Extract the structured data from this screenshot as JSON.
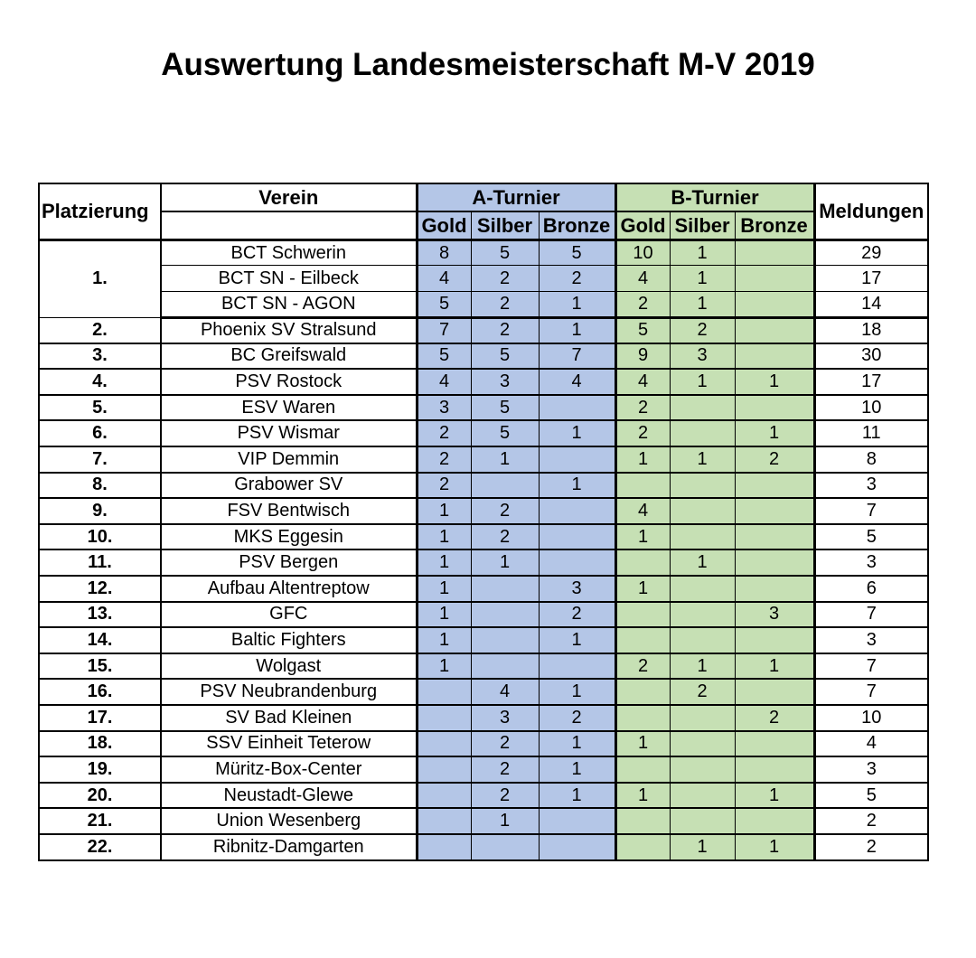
{
  "title": "Auswertung Landesmeisterschaft M-V 2019",
  "table": {
    "headers": {
      "platzierung": "Platzierung",
      "verein": "Verein",
      "a_turnier": "A-Turnier",
      "b_turnier": "B-Turnier",
      "gold": "Gold",
      "silber": "Silber",
      "bronze": "Bronze",
      "meldungen": "Meldungen"
    },
    "colors": {
      "a_fill": "#B4C6E7",
      "b_fill": "#C6E0B4",
      "border": "#000000"
    },
    "groups": [
      {
        "rank": "1.",
        "highlight": true,
        "rows": [
          {
            "verein": "BCT Schwerin",
            "a": [
              "8",
              "5",
              "5"
            ],
            "b": [
              "10",
              "1",
              ""
            ],
            "meldungen": "29"
          },
          {
            "verein": "BCT SN - Eilbeck",
            "a": [
              "4",
              "2",
              "2"
            ],
            "b": [
              "4",
              "1",
              ""
            ],
            "meldungen": "17"
          },
          {
            "verein": "BCT SN - AGON",
            "a": [
              "5",
              "2",
              "1"
            ],
            "b": [
              "2",
              "1",
              ""
            ],
            "meldungen": "14"
          }
        ]
      },
      {
        "rank": "2.",
        "highlight": false,
        "rows": [
          {
            "verein": "Phoenix SV Stralsund",
            "a": [
              "7",
              "2",
              "1"
            ],
            "b": [
              "5",
              "2",
              ""
            ],
            "meldungen": "18"
          }
        ]
      },
      {
        "rank": "3.",
        "highlight": false,
        "rows": [
          {
            "verein": "BC Greifswald",
            "a": [
              "5",
              "5",
              "7"
            ],
            "b": [
              "9",
              "3",
              ""
            ],
            "meldungen": "30"
          }
        ]
      },
      {
        "rank": "4.",
        "highlight": false,
        "rows": [
          {
            "verein": "PSV Rostock",
            "a": [
              "4",
              "3",
              "4"
            ],
            "b": [
              "4",
              "1",
              "1"
            ],
            "meldungen": "17"
          }
        ]
      },
      {
        "rank": "5.",
        "highlight": false,
        "rows": [
          {
            "verein": "ESV Waren",
            "a": [
              "3",
              "5",
              ""
            ],
            "b": [
              "2",
              "",
              ""
            ],
            "meldungen": "10"
          }
        ]
      },
      {
        "rank": "6.",
        "highlight": false,
        "rows": [
          {
            "verein": "PSV Wismar",
            "a": [
              "2",
              "5",
              "1"
            ],
            "b": [
              "2",
              "",
              "1"
            ],
            "meldungen": "11"
          }
        ]
      },
      {
        "rank": "7.",
        "highlight": false,
        "rows": [
          {
            "verein": "VIP Demmin",
            "a": [
              "2",
              "1",
              ""
            ],
            "b": [
              "1",
              "1",
              "2"
            ],
            "meldungen": "8"
          }
        ]
      },
      {
        "rank": "8.",
        "highlight": false,
        "rows": [
          {
            "verein": "Grabower SV",
            "a": [
              "2",
              "",
              "1"
            ],
            "b": [
              "",
              "",
              ""
            ],
            "meldungen": "3"
          }
        ]
      },
      {
        "rank": "9.",
        "highlight": false,
        "rows": [
          {
            "verein": "FSV Bentwisch",
            "a": [
              "1",
              "2",
              ""
            ],
            "b": [
              "4",
              "",
              ""
            ],
            "meldungen": "7"
          }
        ]
      },
      {
        "rank": "10.",
        "highlight": false,
        "rows": [
          {
            "verein": "MKS Eggesin",
            "a": [
              "1",
              "2",
              ""
            ],
            "b": [
              "1",
              "",
              ""
            ],
            "meldungen": "5"
          }
        ]
      },
      {
        "rank": "11.",
        "highlight": false,
        "rows": [
          {
            "verein": "PSV Bergen",
            "a": [
              "1",
              "1",
              ""
            ],
            "b": [
              "",
              "1",
              ""
            ],
            "meldungen": "3"
          }
        ]
      },
      {
        "rank": "12.",
        "highlight": false,
        "rows": [
          {
            "verein": "Aufbau Altentreptow",
            "a": [
              "1",
              "",
              "3"
            ],
            "b": [
              "1",
              "",
              ""
            ],
            "meldungen": "6"
          }
        ]
      },
      {
        "rank": "13.",
        "highlight": false,
        "rows": [
          {
            "verein": "GFC",
            "a": [
              "1",
              "",
              "2"
            ],
            "b": [
              "",
              "",
              "3"
            ],
            "meldungen": "7"
          }
        ]
      },
      {
        "rank": "14.",
        "highlight": false,
        "rows": [
          {
            "verein": "Baltic Fighters",
            "a": [
              "1",
              "",
              "1"
            ],
            "b": [
              "",
              "",
              ""
            ],
            "meldungen": "3"
          }
        ]
      },
      {
        "rank": "15.",
        "highlight": false,
        "rows": [
          {
            "verein": "Wolgast",
            "a": [
              "1",
              "",
              ""
            ],
            "b": [
              "2",
              "1",
              "1"
            ],
            "meldungen": "7"
          }
        ]
      },
      {
        "rank": "16.",
        "highlight": false,
        "rows": [
          {
            "verein": "PSV Neubrandenburg",
            "a": [
              "",
              "4",
              "1"
            ],
            "b": [
              "",
              "2",
              ""
            ],
            "meldungen": "7"
          }
        ]
      },
      {
        "rank": "17.",
        "highlight": false,
        "rows": [
          {
            "verein": "SV Bad Kleinen",
            "a": [
              "",
              "3",
              "2"
            ],
            "b": [
              "",
              "",
              "2"
            ],
            "meldungen": "10"
          }
        ]
      },
      {
        "rank": "18.",
        "highlight": false,
        "rows": [
          {
            "verein": "SSV Einheit Teterow",
            "a": [
              "",
              "2",
              "1"
            ],
            "b": [
              "1",
              "",
              ""
            ],
            "meldungen": "4"
          }
        ]
      },
      {
        "rank": "19.",
        "highlight": false,
        "rows": [
          {
            "verein": "Müritz-Box-Center",
            "a": [
              "",
              "2",
              "1"
            ],
            "b": [
              "",
              "",
              ""
            ],
            "meldungen": "3"
          }
        ]
      },
      {
        "rank": "20.",
        "highlight": false,
        "rows": [
          {
            "verein": "Neustadt-Glewe",
            "a": [
              "",
              "2",
              "1"
            ],
            "b": [
              "1",
              "",
              "1"
            ],
            "meldungen": "5"
          }
        ]
      },
      {
        "rank": "21.",
        "highlight": false,
        "rows": [
          {
            "verein": "Union Wesenberg",
            "a": [
              "",
              "1",
              ""
            ],
            "b": [
              "",
              "",
              ""
            ],
            "meldungen": "2"
          }
        ]
      },
      {
        "rank": "22.",
        "highlight": false,
        "rows": [
          {
            "verein": "Ribnitz-Damgarten",
            "a": [
              "",
              "",
              ""
            ],
            "b": [
              "",
              "1",
              "1"
            ],
            "meldungen": "2"
          }
        ]
      }
    ]
  }
}
